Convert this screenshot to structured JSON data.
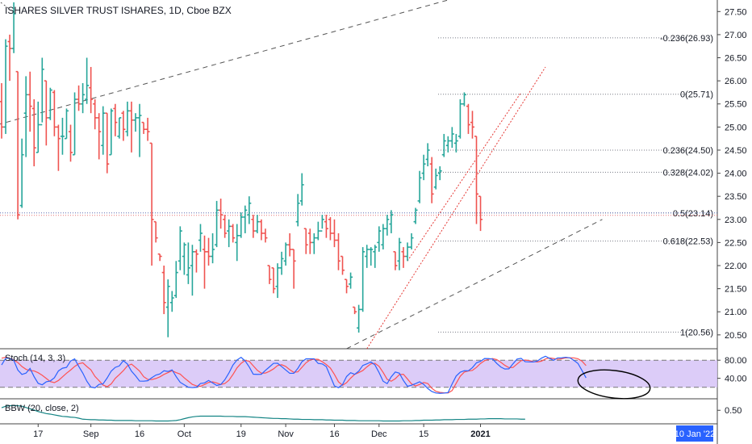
{
  "chart_data": {
    "type": "ohlc",
    "title": "ISHARES SILVER TRUST ISHARES, 1D, Cboe BZX",
    "y_axis": {
      "range": [
        20.2,
        27.75
      ],
      "ticks": [
        "20.50",
        "21.00",
        "21.50",
        "22.00",
        "22.50",
        "23.00",
        "23.50",
        "24.00",
        "24.50",
        "25.00",
        "25.50",
        "26.00",
        "26.50",
        "27.00",
        "27.50"
      ]
    },
    "x_axis": {
      "ticks": [
        {
          "i": 9,
          "label": "17"
        },
        {
          "i": 22,
          "label": "Sep"
        },
        {
          "i": 34,
          "label": "16"
        },
        {
          "i": 45,
          "label": "Oct"
        },
        {
          "i": 59,
          "label": "19"
        },
        {
          "i": 70,
          "label": "Nov"
        },
        {
          "i": 82,
          "label": "16"
        },
        {
          "i": 93,
          "label": "Dec"
        },
        {
          "i": 104,
          "label": "15"
        },
        {
          "i": 118,
          "label": "2021"
        }
      ],
      "cursor_label": "10 Jan '22"
    },
    "colors": {
      "up": "#26a69a",
      "down": "#ef5350",
      "stoch_k": "#2962ff",
      "stoch_d": "#ff5252",
      "bbw": "#138484",
      "band": "#d6c3f7"
    },
    "fib_levels": [
      {
        "label": "-0.236(26.93)",
        "value": 26.93
      },
      {
        "label": "0(25.71)",
        "value": 25.71
      },
      {
        "label": "0.236(24.50)",
        "value": 24.5
      },
      {
        "label": "0.328(24.02)",
        "value": 24.02
      },
      {
        "label": "0.5(23.14)",
        "value": 23.14
      },
      {
        "label": "0.618(22.53)",
        "value": 22.53
      },
      {
        "label": "1(20.56)",
        "value": 20.56
      }
    ],
    "trendlines": [
      {
        "style": "dashed-gray",
        "from": {
          "i": -1,
          "v": 25.05
        },
        "to": {
          "i": 110,
          "v": 27.75
        }
      },
      {
        "style": "dashed-gray",
        "from": {
          "i": 85,
          "v": 20.2
        },
        "to": {
          "i": 148,
          "v": 23.0
        }
      },
      {
        "style": "dotted-gray",
        "from": {
          "i": -1,
          "v": 27.75
        },
        "to": {
          "i": 2,
          "v": 27.55
        }
      },
      {
        "style": "dotted-red",
        "from": {
          "i": 90,
          "v": 20.2
        },
        "to": {
          "i": 134,
          "v": 26.3
        }
      },
      {
        "style": "dotted-red",
        "from": {
          "i": 100,
          "v": 22.1
        },
        "to": {
          "i": 128,
          "v": 25.75
        }
      }
    ],
    "ohlc": [
      [
        25.55,
        25.95,
        24.75,
        25.0
      ],
      [
        25.0,
        26.9,
        24.85,
        26.75
      ],
      [
        26.85,
        27.0,
        26.0,
        26.7
      ],
      [
        26.7,
        27.7,
        26.6,
        27.45
      ],
      [
        26.2,
        26.2,
        23.0,
        23.1
      ],
      [
        23.3,
        24.75,
        23.25,
        24.4
      ],
      [
        25.3,
        26.1,
        24.35,
        25.7
      ],
      [
        25.7,
        26.2,
        24.9,
        25.45
      ],
      [
        25.4,
        25.6,
        24.15,
        24.55
      ],
      [
        24.45,
        25.55,
        24.45,
        25.05
      ],
      [
        25.05,
        26.5,
        25.1,
        26.25
      ],
      [
        26.0,
        26.0,
        24.6,
        25.2
      ],
      [
        25.2,
        25.85,
        25.15,
        25.8
      ],
      [
        25.75,
        25.8,
        24.8,
        25.0
      ],
      [
        25.0,
        25.05,
        24.05,
        24.75
      ],
      [
        24.8,
        25.2,
        24.4,
        24.8
      ],
      [
        24.75,
        25.4,
        24.75,
        25.35
      ],
      [
        24.9,
        25.05,
        24.25,
        24.45
      ],
      [
        24.4,
        25.75,
        24.4,
        25.6
      ],
      [
        25.6,
        25.9,
        25.35,
        25.5
      ],
      [
        25.5,
        25.95,
        25.3,
        25.7
      ],
      [
        25.6,
        26.5,
        25.5,
        25.9
      ],
      [
        25.85,
        26.3,
        25.3,
        25.6
      ],
      [
        25.5,
        25.6,
        24.95,
        25.2
      ],
      [
        25.2,
        25.3,
        24.3,
        24.9
      ],
      [
        24.6,
        25.45,
        24.4,
        25.3
      ],
      [
        25.3,
        25.3,
        24.0,
        24.2
      ],
      [
        24.4,
        25.4,
        24.4,
        25.35
      ],
      [
        25.4,
        25.5,
        24.8,
        25.1
      ],
      [
        24.8,
        25.2,
        24.75,
        25.2
      ],
      [
        25.3,
        25.35,
        24.7,
        24.95
      ],
      [
        24.9,
        25.55,
        24.8,
        25.35
      ],
      [
        25.35,
        25.55,
        24.45,
        25.15
      ],
      [
        25.15,
        25.3,
        24.9,
        25.2
      ],
      [
        25.2,
        25.5,
        24.35,
        25.25
      ],
      [
        25.1,
        25.1,
        24.85,
        24.95
      ],
      [
        24.95,
        25.2,
        24.7,
        24.9
      ],
      [
        24.65,
        24.65,
        22.0,
        23.0
      ],
      [
        22.95,
        22.95,
        22.5,
        22.6
      ],
      [
        22.25,
        22.25,
        22.1,
        22.2
      ],
      [
        21.85,
        22.0,
        20.95,
        21.2
      ],
      [
        21.1,
        21.7,
        20.45,
        21.55
      ],
      [
        21.2,
        21.45,
        21.0,
        21.3
      ],
      [
        21.35,
        22.1,
        21.3,
        21.85
      ],
      [
        22.1,
        22.85,
        21.9,
        22.75
      ],
      [
        22.2,
        22.5,
        21.8,
        22.45
      ],
      [
        21.8,
        22.5,
        21.6,
        21.95
      ],
      [
        22.0,
        22.45,
        21.35,
        22.3
      ],
      [
        22.3,
        22.35,
        21.85,
        22.25
      ],
      [
        22.55,
        22.9,
        22.3,
        22.7
      ],
      [
        22.35,
        22.65,
        21.5,
        22.3
      ],
      [
        22.3,
        22.6,
        22.0,
        22.2
      ],
      [
        22.2,
        22.7,
        22.05,
        22.35
      ],
      [
        22.45,
        23.4,
        22.4,
        23.2
      ],
      [
        23.2,
        23.45,
        22.8,
        23.1
      ],
      [
        23.0,
        23.1,
        22.6,
        22.7
      ],
      [
        22.75,
        23.0,
        22.4,
        22.85
      ],
      [
        22.85,
        22.9,
        22.5,
        22.6
      ],
      [
        22.5,
        22.9,
        22.1,
        22.65
      ],
      [
        22.65,
        23.15,
        22.6,
        23.05
      ],
      [
        23.05,
        23.3,
        22.7,
        23.2
      ],
      [
        23.1,
        23.5,
        22.9,
        23.35
      ],
      [
        23.0,
        23.1,
        22.6,
        22.75
      ],
      [
        22.75,
        23.1,
        22.7,
        22.95
      ],
      [
        22.95,
        23.0,
        22.55,
        22.7
      ],
      [
        22.7,
        22.8,
        22.5,
        22.6
      ],
      [
        22.0,
        22.0,
        21.6,
        21.7
      ],
      [
        21.95,
        21.95,
        21.4,
        21.5
      ],
      [
        21.55,
        22.05,
        21.3,
        21.95
      ],
      [
        21.95,
        22.3,
        21.8,
        22.15
      ],
      [
        22.1,
        22.5,
        22.0,
        22.45
      ],
      [
        22.45,
        22.7,
        22.2,
        22.35
      ],
      [
        22.35,
        22.35,
        21.5,
        22.1
      ],
      [
        22.95,
        23.55,
        22.85,
        23.35
      ],
      [
        23.4,
        24.0,
        23.3,
        23.75
      ],
      [
        22.8,
        22.8,
        22.25,
        22.45
      ],
      [
        22.7,
        22.8,
        22.25,
        22.5
      ],
      [
        22.5,
        22.7,
        22.25,
        22.6
      ],
      [
        22.6,
        22.95,
        22.55,
        22.75
      ],
      [
        22.75,
        23.1,
        22.8,
        23.0
      ],
      [
        22.95,
        23.1,
        22.6,
        22.8
      ],
      [
        23.0,
        23.05,
        22.55,
        22.7
      ],
      [
        22.7,
        23.0,
        22.4,
        22.55
      ],
      [
        22.55,
        22.7,
        21.9,
        22.1
      ],
      [
        22.2,
        22.2,
        21.8,
        21.9
      ],
      [
        21.7,
        21.7,
        21.4,
        21.55
      ],
      [
        21.6,
        21.85,
        21.5,
        21.75
      ],
      [
        21.1,
        21.1,
        20.95,
        21.0
      ],
      [
        20.65,
        21.15,
        20.55,
        21.05
      ],
      [
        21.05,
        22.4,
        21.0,
        22.3
      ],
      [
        22.2,
        22.45,
        21.95,
        22.35
      ],
      [
        22.35,
        22.4,
        22.0,
        22.35
      ],
      [
        22.3,
        22.45,
        21.95,
        22.4
      ],
      [
        22.5,
        22.85,
        22.3,
        22.75
      ],
      [
        22.45,
        22.9,
        22.35,
        22.8
      ],
      [
        22.8,
        23.1,
        22.65,
        23.0
      ],
      [
        22.9,
        23.2,
        22.7,
        23.1
      ],
      [
        22.3,
        22.3,
        21.9,
        22.0
      ],
      [
        22.1,
        22.6,
        21.9,
        22.5
      ],
      [
        22.3,
        22.4,
        21.95,
        22.2
      ],
      [
        22.2,
        22.5,
        22.1,
        22.4
      ],
      [
        22.4,
        22.7,
        22.35,
        22.6
      ],
      [
        22.95,
        23.25,
        22.9,
        23.2
      ],
      [
        23.4,
        24.05,
        23.35,
        23.9
      ],
      [
        24.0,
        24.4,
        23.85,
        24.2
      ],
      [
        24.3,
        24.65,
        24.15,
        24.5
      ],
      [
        24.2,
        24.35,
        23.35,
        23.55
      ],
      [
        23.7,
        24.1,
        23.65,
        23.95
      ],
      [
        24.0,
        24.15,
        23.85,
        24.05
      ],
      [
        24.4,
        24.85,
        24.35,
        24.7
      ],
      [
        24.6,
        24.8,
        24.45,
        24.7
      ],
      [
        24.7,
        25.0,
        24.55,
        24.85
      ],
      [
        24.65,
        24.85,
        24.45,
        24.7
      ],
      [
        24.8,
        25.6,
        24.75,
        25.5
      ],
      [
        25.5,
        25.75,
        25.45,
        25.7
      ],
      [
        25.45,
        25.5,
        24.85,
        25.05
      ],
      [
        25.1,
        25.35,
        24.75,
        25.0
      ],
      [
        24.8,
        24.8,
        22.9,
        23.55
      ],
      [
        23.5,
        23.5,
        22.75,
        23.0
      ]
    ],
    "stoch": {
      "label": "Stoch (14, 3, 3)",
      "range": [
        0,
        100
      ],
      "ticks": [
        "80.00",
        "40.00"
      ],
      "bands": [
        20,
        80
      ],
      "k": [
        69.5,
        84.3,
        84.3,
        79.4,
        58.2,
        48.5,
        51.4,
        61.9,
        43.7,
        28.8,
        25.6,
        32.2,
        34.1,
        41.1,
        56.3,
        62.3,
        64.2,
        78.3,
        82.9,
        66.3,
        51.5,
        33.5,
        20.6,
        18.8,
        26.4,
        27.7,
        40.6,
        55.8,
        64.1,
        67.4,
        79.0,
        71.6,
        55.8,
        45.5,
        33.8,
        33.6,
        34.6,
        41.3,
        47.0,
        49.6,
        56.6,
        55.1,
        58.5,
        43.8,
        31.1,
        25.6,
        20.2,
        19.3,
        20.1,
        28.5,
        29.8,
        35.2,
        29.6,
        24.1,
        26.2,
        36.7,
        51.6,
        69.3,
        80.5,
        86.3,
        78.6,
        65.3,
        49.1,
        48.6,
        48.9,
        57.5,
        65.2,
        73.1,
        73.2,
        65.9,
        58.4,
        51.0,
        51.0,
        62.1,
        76.6,
        83.0,
        83.0,
        83.0,
        72.8,
        71.8,
        65.8,
        44.5,
        23.2,
        19.2,
        26.1,
        43.9,
        52.3,
        48.8,
        55.9,
        68.4,
        71.9,
        76.1,
        69.3,
        52.7,
        33.5,
        28.2,
        43.3,
        53.9,
        51.3,
        35.2,
        22.3,
        24.7,
        28.2,
        32.3,
        26.6,
        17.4,
        10.8,
        7.5,
        6.7,
        7.3,
        8.4,
        27.5,
        45.0,
        53.5,
        56.8,
        56.6,
        63.5,
        74.3,
        77.6,
        83.7,
        83.5,
        82.4,
        72.9,
        65.0,
        60.5,
        60.9,
        72.0,
        82.5,
        84.1,
        76.7,
        76.2,
        76.1,
        78.0,
        84.5,
        88.8,
        84.1,
        79.8,
        85.2,
        85.3,
        86.5,
        85.2,
        79.7,
        73.0,
        57.2,
        40.9
      ],
      "d": [
        84.5,
        86.3,
        84.5,
        80.2,
        74.9,
        66.0,
        60.0,
        56.9,
        56.4,
        52.3,
        46.7,
        39.7,
        32.6,
        30.4,
        35.1,
        43.1,
        51.2,
        58.3,
        66.1,
        72.2,
        74.2,
        66.1,
        58.7,
        44.1,
        34.8,
        25.1,
        21.3,
        27.6,
        39.9,
        48.2,
        57.0,
        67.7,
        71.4,
        64.0,
        56.0,
        43.6,
        37.6,
        37.2,
        39.5,
        43.2,
        48.5,
        52.5,
        56.8,
        52.6,
        49.3,
        41.0,
        33.7,
        26.4,
        23.3,
        22.3,
        26.3,
        30.8,
        32.1,
        29.5,
        26.3,
        28.5,
        35.6,
        48.4,
        63.1,
        73.0,
        79.4,
        77.8,
        67.7,
        57.7,
        51.4,
        51.5,
        55.5,
        60.8,
        68.2,
        70.0,
        66.2,
        59.0,
        53.2,
        54.3,
        64.3,
        74.3,
        80.5,
        82.1,
        81.9,
        76.7,
        70.3,
        62.6,
        48.5,
        32.2,
        24.5,
        30.3,
        40.4,
        48.8,
        52.6,
        57.2,
        65.2,
        72.0,
        73.0,
        66.4,
        53.1,
        37.7,
        33.5,
        39.1,
        48.0,
        48.9,
        38.5,
        27.6,
        23.1,
        26.4,
        30.7,
        28.6,
        18.0,
        11.3,
        8.8,
        7.9,
        7.5,
        12.9,
        28.9,
        44.6,
        53.7,
        56.1,
        57.5,
        64.2,
        72.8,
        78.9,
        82.2,
        83.4,
        81.4,
        75.5,
        68.6,
        63.5,
        64.0,
        71.5,
        79.0,
        80.4,
        79.1,
        76.9,
        76.1,
        77.9,
        82.7,
        85.0,
        83.7,
        82.3,
        83.0,
        85.1,
        85.4,
        85.2,
        83.1,
        78.0,
        68.1
      ]
    },
    "bbw": {
      "label": "BBW (20, close, 2)",
      "ticks": [
        "0.50"
      ],
      "range": [
        0.0,
        0.92
      ],
      "values": [
        0.6,
        0.66,
        0.68,
        0.69,
        0.68,
        0.66,
        0.61,
        0.56,
        0.51,
        0.45,
        0.41,
        0.37,
        0.35,
        0.32,
        0.29,
        0.26,
        0.25,
        0.23,
        0.22,
        0.19,
        0.15,
        0.14,
        0.13,
        0.13,
        0.12,
        0.12,
        0.11,
        0.11,
        0.1,
        0.1,
        0.1,
        0.1,
        0.1,
        0.09,
        0.09,
        0.09,
        0.09,
        0.09,
        0.08,
        0.08,
        0.08,
        0.08,
        0.09,
        0.1,
        0.13,
        0.17,
        0.21,
        0.24,
        0.26,
        0.27,
        0.27,
        0.27,
        0.27,
        0.27,
        0.27,
        0.26,
        0.26,
        0.26,
        0.25,
        0.25,
        0.25,
        0.24,
        0.23,
        0.22,
        0.21,
        0.2,
        0.19,
        0.18,
        0.18,
        0.17,
        0.17,
        0.16,
        0.15,
        0.15,
        0.14,
        0.14,
        0.14,
        0.13,
        0.13,
        0.13,
        0.12,
        0.12,
        0.11,
        0.11,
        0.11,
        0.1,
        0.1,
        0.1,
        0.09,
        0.09,
        0.09,
        0.09,
        0.09,
        0.09,
        0.08,
        0.08,
        0.08,
        0.08,
        0.08,
        0.09,
        0.09,
        0.09,
        0.1,
        0.1,
        0.11,
        0.11,
        0.11,
        0.12,
        0.12,
        0.13,
        0.13,
        0.13,
        0.14,
        0.14,
        0.14,
        0.15,
        0.15,
        0.15,
        0.16,
        0.16,
        0.17,
        0.17,
        0.17,
        0.17,
        0.16,
        0.16,
        0.16,
        0.16,
        0.15,
        0.15
      ]
    }
  }
}
